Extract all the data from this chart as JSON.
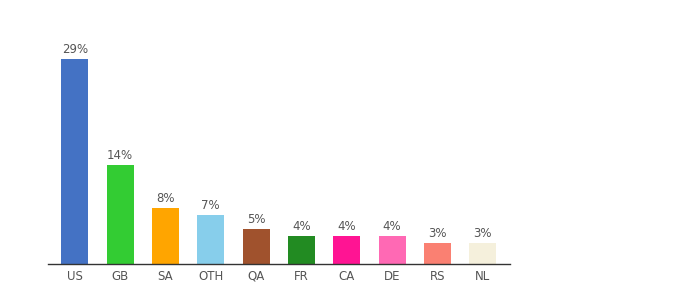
{
  "categories": [
    "US",
    "GB",
    "SA",
    "OTH",
    "QA",
    "FR",
    "CA",
    "DE",
    "RS",
    "NL"
  ],
  "values": [
    29,
    14,
    8,
    7,
    5,
    4,
    4,
    4,
    3,
    3
  ],
  "bar_colors": [
    "#4472C4",
    "#33CC33",
    "#FFA500",
    "#87CEEB",
    "#A0522D",
    "#228B22",
    "#FF1493",
    "#FF69B4",
    "#FA8072",
    "#F5F0DC"
  ],
  "ylim": [
    0,
    34
  ],
  "background_color": "#ffffff",
  "label_fontsize": 8.5,
  "tick_fontsize": 8.5,
  "bar_width": 0.6
}
